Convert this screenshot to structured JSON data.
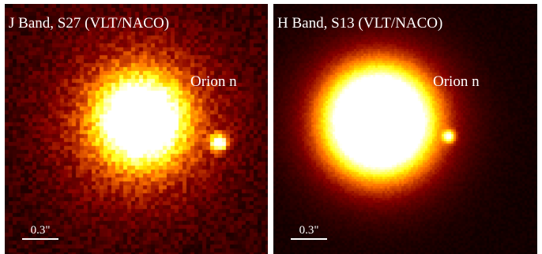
{
  "panels": [
    {
      "title": "J Band, S27 (VLT/NACO)",
      "object_label": "Orion n",
      "scale_label": "0.3\""
    },
    {
      "title": "H Band, S13 (VLT/NACO)",
      "object_label": "Orion n",
      "scale_label": "0.3\""
    }
  ],
  "colors": {
    "colormap": "heat (black-red-orange-yellow-white)",
    "text": "#ffffff",
    "background": "#ffffff"
  }
}
